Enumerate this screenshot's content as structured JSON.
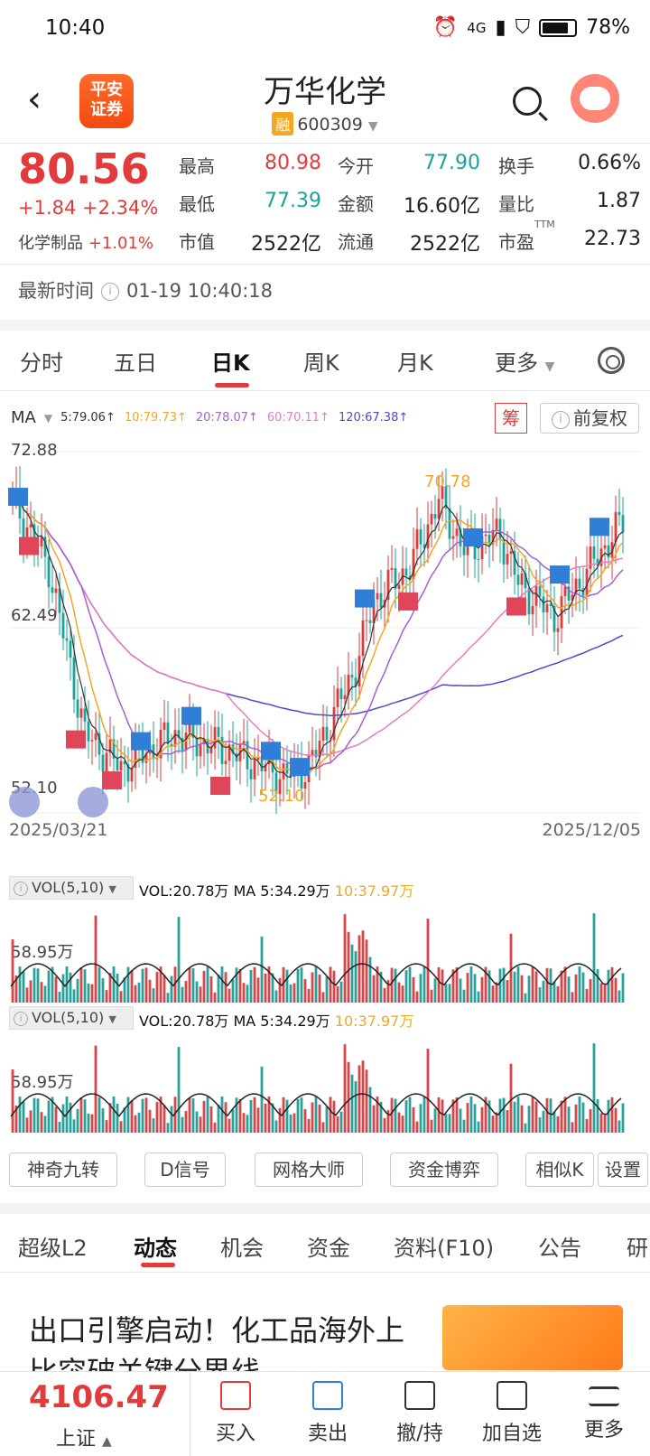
{
  "status": {
    "time": "10:40",
    "battery": "78%",
    "network": "4G"
  },
  "header": {
    "title": "万华化学",
    "badge": "融",
    "code": "600309",
    "logo_text_1": "平安",
    "logo_text_2": "证券"
  },
  "quote": {
    "price": "80.56",
    "change": "+1.84  +2.34%",
    "sector_label": "化学制品",
    "sector_change": "+1.01%",
    "rows": [
      [
        {
          "l": "最高",
          "v": "80.98",
          "c": "red"
        },
        {
          "l": "今开",
          "v": "77.90",
          "c": "green"
        },
        {
          "l": "换手",
          "v": "0.66%",
          "c": "dark"
        }
      ],
      [
        {
          "l": "最低",
          "v": "77.39",
          "c": "green"
        },
        {
          "l": "金额",
          "v": "16.60亿",
          "c": "dark"
        },
        {
          "l": "量比",
          "v": "1.87",
          "c": "dark"
        }
      ],
      [
        {
          "l": "市值",
          "v": "2522亿",
          "c": "dark"
        },
        {
          "l": "流通",
          "v": "2522亿",
          "c": "dark"
        },
        {
          "l": "市盈",
          "v": "22.73",
          "c": "dark",
          "sup": "TTM"
        }
      ]
    ],
    "update_label": "最新时间",
    "update_time": "01-19 10:40:18"
  },
  "tabs": [
    "分时",
    "五日",
    "日K",
    "周K",
    "月K",
    "更多"
  ],
  "active_tab": "日K",
  "ma": {
    "label": "MA",
    "items": [
      {
        "text": "5:79.06↑",
        "color": "#333333"
      },
      {
        "text": "10:79.73↑",
        "color": "#f5a623"
      },
      {
        "text": "20:78.07↑",
        "color": "#a65fd6"
      },
      {
        "text": "60:70.11↑",
        "color": "#e77cc2"
      },
      {
        "text": "120:67.38↑",
        "color": "#4b4bd1"
      }
    ],
    "chou": "筹",
    "fuquan": "前复权"
  },
  "kline": {
    "ymax_label": "72.88",
    "ymid_label": "62.49",
    "ymin_label": "52.10",
    "high_marker": "70.78",
    "low_marker": "52.10",
    "date_start": "2025/03/21",
    "date_end": "2025/12/05"
  },
  "volume_panels": [
    {
      "selector": "VOL(5,10)",
      "vol": "VOL:20.78万",
      "ma5": "MA 5:34.29万",
      "ma10": "10:37.97万",
      "ylabel": "58.95万"
    },
    {
      "selector": "VOL(5,10)",
      "vol": "VOL:20.78万",
      "ma5": "MA 5:34.29万",
      "ma10": "10:37.97万",
      "ylabel": "58.95万"
    }
  ],
  "tools": [
    "神奇九转",
    "D信号",
    "网格大师",
    "资金博弈",
    "相似K",
    "设置"
  ],
  "bottom_tabs": [
    "超级L2",
    "动态",
    "机会",
    "资金",
    "资料(F10)",
    "公告",
    "研"
  ],
  "active_bottom_tab": "动态",
  "news": {
    "title": "出口引擎启动！化工品海外上比突破关键分界线"
  },
  "index": {
    "value": "4106.47",
    "name": "上证"
  },
  "actions": [
    "买入",
    "卖出",
    "撤/持",
    "加自选",
    "更多"
  ]
}
